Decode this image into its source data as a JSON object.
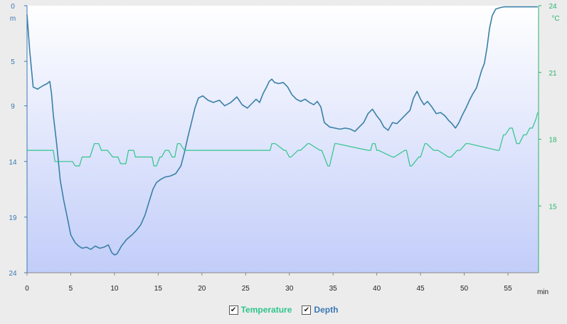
{
  "colors": {
    "depth": "#3a7fa6",
    "temperature": "#2fc48a",
    "depth_axis": "#3a78b5",
    "temperature_axis": "#2bb36f",
    "plot_top": "#ffffff",
    "plot_bottom": "#c2cdf9"
  },
  "legend": {
    "checkmark": "✔",
    "temperature_label": "Temperature",
    "depth_label": "Depth"
  },
  "chart_data": {
    "type": "line",
    "title": "",
    "xlabel": "min",
    "xlim": [
      0,
      58.5
    ],
    "x_ticks": [
      0,
      5,
      10,
      15,
      20,
      25,
      30,
      35,
      40,
      45,
      50,
      55
    ],
    "left_axis": {
      "unit": "m",
      "range": [
        0,
        24
      ],
      "inverted": true,
      "ticks": [
        "0",
        "5",
        "9",
        "14",
        "19",
        "24"
      ]
    },
    "right_axis": {
      "unit": "°C",
      "range": [
        12,
        24
      ],
      "ticks": [
        "24",
        "21",
        "18",
        "15"
      ]
    },
    "grid": false,
    "series": [
      {
        "name": "Depth",
        "axis": "left",
        "x": [
          0,
          0.3,
          0.7,
          1.2,
          1.8,
          2.3,
          2.6,
          2.8,
          3.0,
          3.4,
          3.8,
          4.2,
          4.6,
          5.0,
          5.5,
          5.9,
          6.3,
          6.8,
          7.3,
          7.8,
          8.3,
          8.8,
          9.3,
          9.7,
          10.0,
          10.3,
          10.8,
          11.4,
          12.0,
          12.5,
          13.0,
          13.5,
          14.0,
          14.4,
          14.8,
          15.3,
          15.8,
          16.4,
          17.0,
          17.6,
          18.0,
          18.4,
          18.8,
          19.2,
          19.6,
          20.1,
          20.7,
          21.3,
          22.0,
          22.6,
          23.3,
          24.0,
          24.6,
          25.2,
          25.7,
          26.2,
          26.6,
          27.0,
          27.4,
          27.7,
          28.0,
          28.3,
          28.8,
          29.3,
          29.8,
          30.3,
          30.8,
          31.3,
          31.8,
          32.3,
          32.8,
          33.2,
          33.6,
          34.0,
          34.6,
          35.2,
          35.8,
          36.4,
          37.0,
          37.5,
          38.0,
          38.5,
          39.0,
          39.5,
          40.0,
          40.4,
          40.8,
          41.3,
          41.8,
          42.3,
          42.8,
          43.3,
          43.8,
          44.2,
          44.6,
          45.0,
          45.4,
          45.8,
          46.3,
          46.8,
          47.3,
          47.8,
          48.2,
          48.6,
          49.0,
          49.4,
          49.8,
          50.2,
          50.6,
          51.0,
          51.4,
          51.7,
          52.0,
          52.3,
          52.6,
          52.9,
          53.2,
          53.6,
          54.0,
          54.5,
          55.0,
          56.0,
          57.0,
          58.0,
          58.4
        ],
        "y": [
          0.8,
          4.0,
          7.3,
          7.5,
          7.2,
          7.0,
          6.8,
          7.9,
          9.8,
          12.5,
          15.7,
          17.5,
          19.0,
          20.6,
          21.3,
          21.6,
          21.8,
          21.7,
          21.9,
          21.6,
          21.8,
          21.7,
          21.5,
          22.2,
          22.4,
          22.3,
          21.6,
          21.0,
          20.6,
          20.2,
          19.7,
          18.8,
          17.5,
          16.5,
          15.9,
          15.6,
          15.4,
          15.3,
          15.1,
          14.4,
          13.2,
          11.8,
          10.5,
          9.2,
          8.3,
          8.1,
          8.5,
          8.7,
          8.5,
          9.0,
          8.7,
          8.2,
          8.9,
          9.2,
          8.8,
          8.4,
          8.7,
          7.9,
          7.3,
          6.8,
          6.6,
          6.9,
          7.0,
          6.9,
          7.3,
          8.0,
          8.4,
          8.6,
          8.4,
          8.7,
          8.9,
          8.6,
          9.1,
          10.5,
          10.9,
          11.0,
          11.1,
          11.0,
          11.1,
          11.3,
          10.9,
          10.5,
          9.7,
          9.3,
          9.9,
          10.3,
          10.9,
          11.2,
          10.5,
          10.6,
          10.2,
          9.8,
          9.4,
          8.3,
          7.7,
          8.4,
          8.9,
          8.6,
          9.1,
          9.7,
          9.6,
          9.9,
          10.3,
          10.6,
          11.0,
          10.5,
          9.8,
          9.2,
          8.5,
          7.9,
          7.4,
          6.6,
          5.8,
          5.2,
          3.8,
          2.0,
          0.9,
          0.3,
          0.2,
          0.1,
          0.1,
          0.1,
          0.1,
          0.1,
          0.1
        ]
      },
      {
        "name": "Temperature",
        "axis": "right",
        "x": [
          0,
          3.0,
          3.2,
          5.2,
          5.5,
          6.0,
          6.3,
          7.2,
          7.7,
          8.2,
          8.5,
          9.2,
          9.8,
          10.4,
          10.7,
          11.3,
          11.6,
          12.2,
          12.4,
          14.3,
          14.5,
          14.8,
          15.2,
          15.4,
          15.8,
          16.2,
          16.6,
          16.9,
          17.2,
          17.5,
          18.0,
          27.8,
          28.0,
          28.4,
          29.4,
          29.6,
          30.0,
          30.2,
          31.0,
          31.3,
          32.1,
          32.3,
          33.5,
          33.7,
          34.4,
          34.6,
          35.2,
          35.4,
          39.0,
          39.3,
          39.5,
          39.8,
          40.0,
          40.2,
          41.8,
          42.0,
          43.2,
          43.4,
          43.8,
          44.0,
          44.8,
          45.0,
          45.5,
          45.7,
          46.5,
          47.0,
          48.2,
          48.5,
          49.2,
          49.5,
          50.2,
          50.5,
          53.8,
          54.0,
          54.5,
          54.7,
          55.2,
          55.5,
          56.0,
          56.3,
          56.8,
          57.1,
          57.5,
          57.8,
          58.2,
          58.4
        ],
        "y": [
          17.5,
          17.5,
          17.0,
          17.0,
          16.8,
          16.8,
          17.2,
          17.2,
          17.8,
          17.8,
          17.5,
          17.5,
          17.2,
          17.2,
          16.9,
          16.9,
          17.5,
          17.5,
          17.2,
          17.2,
          16.8,
          16.8,
          17.2,
          17.2,
          17.5,
          17.5,
          17.2,
          17.2,
          17.8,
          17.8,
          17.5,
          17.5,
          17.8,
          17.8,
          17.5,
          17.5,
          17.2,
          17.2,
          17.5,
          17.5,
          17.8,
          17.8,
          17.5,
          17.5,
          16.8,
          16.8,
          17.8,
          17.8,
          17.5,
          17.5,
          17.8,
          17.8,
          17.5,
          17.5,
          17.2,
          17.2,
          17.5,
          17.5,
          16.8,
          16.8,
          17.2,
          17.2,
          17.8,
          17.8,
          17.5,
          17.5,
          17.2,
          17.2,
          17.5,
          17.5,
          17.8,
          17.8,
          17.5,
          17.5,
          18.2,
          18.2,
          18.5,
          18.5,
          17.8,
          17.8,
          18.2,
          18.2,
          18.5,
          18.5,
          18.9,
          19.2
        ]
      }
    ]
  }
}
